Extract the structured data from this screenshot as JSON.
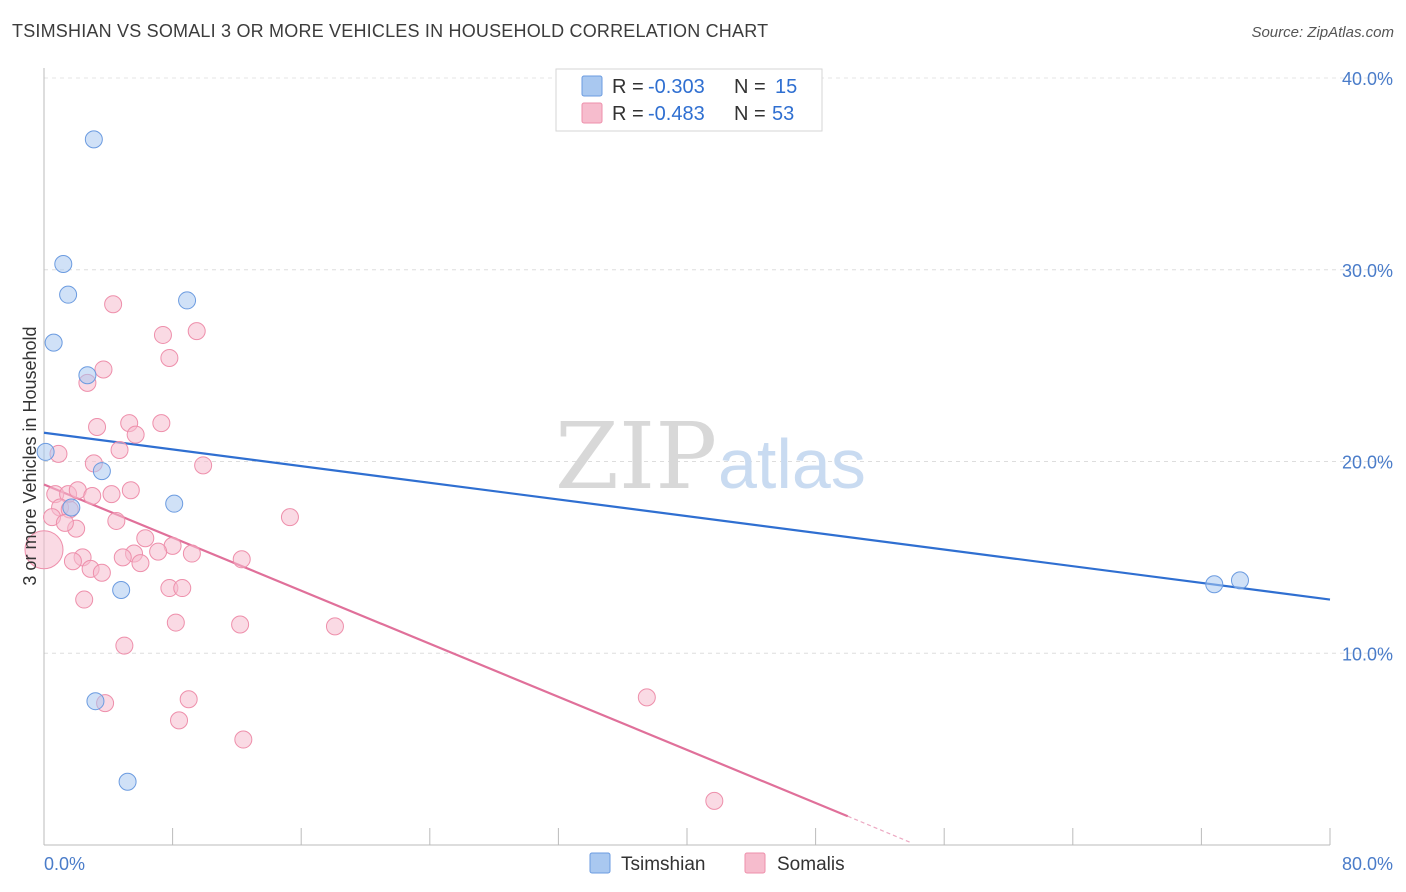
{
  "header": {
    "title": "TSIMSHIAN VS SOMALI 3 OR MORE VEHICLES IN HOUSEHOLD CORRELATION CHART",
    "source": "Source: ZipAtlas.com"
  },
  "watermark": {
    "zip": "ZIP",
    "atlas": "atlas"
  },
  "legend": {
    "rows": [
      {
        "r_label": "R =",
        "r_value": "-0.303",
        "n_label": "N =",
        "n_value": "15",
        "color": "#a9c8f0"
      },
      {
        "r_label": "R =",
        "r_value": "-0.483",
        "n_label": "N =",
        "n_value": "53",
        "color": "#f6bccd"
      }
    ]
  },
  "bottom_legend": {
    "tsimshian": "Tsimshian",
    "somalis": "Somalis"
  },
  "chart_data": {
    "type": "scatter",
    "ylabel": "3 or more Vehicles in Household",
    "xlim": [
      0,
      80
    ],
    "ylim": [
      0,
      40
    ],
    "x_tick_labels": {
      "min": "0.0%",
      "max": "80.0%"
    },
    "y_ticks": [
      10,
      20,
      30,
      40
    ],
    "y_tick_labels": [
      "10.0%",
      "20.0%",
      "30.0%",
      "40.0%"
    ],
    "grid": true,
    "series": [
      {
        "name": "Tsimshian",
        "color": "#a9c8f0",
        "stroke": "#6b9be0",
        "line_color": "#2f6fd1",
        "trend": {
          "x0": 0,
          "y0": 21.5,
          "x1": 80,
          "y1": 12.8
        },
        "points": [
          [
            3.1,
            36.8
          ],
          [
            1.2,
            30.3
          ],
          [
            1.5,
            28.7
          ],
          [
            8.9,
            28.4
          ],
          [
            0.6,
            26.2
          ],
          [
            2.7,
            24.5
          ],
          [
            0.1,
            20.5
          ],
          [
            3.6,
            19.5
          ],
          [
            8.1,
            17.8
          ],
          [
            1.7,
            17.6
          ],
          [
            4.8,
            13.3
          ],
          [
            3.2,
            7.5
          ],
          [
            5.2,
            3.3
          ],
          [
            72.8,
            13.6
          ],
          [
            74.4,
            13.8
          ]
        ]
      },
      {
        "name": "Somalis",
        "color": "#f6bccd",
        "stroke": "#ee8fab",
        "line_color": "#e0709a",
        "trend": {
          "x0": 0,
          "y0": 18.8,
          "x1": 50,
          "y1": 1.5,
          "dash_to_x": 54,
          "dash_to_y": 0.1
        },
        "points": [
          [
            4.3,
            28.2
          ],
          [
            7.4,
            26.6
          ],
          [
            9.5,
            26.8
          ],
          [
            7.8,
            25.4
          ],
          [
            3.7,
            24.8
          ],
          [
            2.7,
            24.1
          ],
          [
            5.3,
            22.0
          ],
          [
            7.3,
            22.0
          ],
          [
            3.3,
            21.8
          ],
          [
            5.7,
            21.4
          ],
          [
            4.7,
            20.6
          ],
          [
            0.9,
            20.4
          ],
          [
            3.1,
            19.9
          ],
          [
            9.9,
            19.8
          ],
          [
            0.7,
            18.3
          ],
          [
            1.5,
            18.3
          ],
          [
            2.1,
            18.5
          ],
          [
            4.2,
            18.3
          ],
          [
            5.4,
            18.5
          ],
          [
            1.0,
            17.6
          ],
          [
            1.6,
            17.5
          ],
          [
            0.5,
            17.1
          ],
          [
            15.3,
            17.1
          ],
          [
            4.5,
            16.9
          ],
          [
            2.0,
            16.5
          ],
          [
            6.3,
            16.0
          ],
          [
            8.0,
            15.6
          ],
          [
            7.1,
            15.3
          ],
          [
            5.6,
            15.2
          ],
          [
            9.2,
            15.2
          ],
          [
            2.4,
            15.0
          ],
          [
            4.9,
            15.0
          ],
          [
            12.3,
            14.9
          ],
          [
            1.8,
            14.8
          ],
          [
            6.0,
            14.7
          ],
          [
            2.9,
            14.4
          ],
          [
            3.6,
            14.2
          ],
          [
            0.0,
            15.4
          ],
          [
            7.8,
            13.4
          ],
          [
            8.6,
            13.4
          ],
          [
            2.5,
            12.8
          ],
          [
            8.2,
            11.6
          ],
          [
            12.2,
            11.5
          ],
          [
            18.1,
            11.4
          ],
          [
            5.0,
            10.4
          ],
          [
            3.8,
            7.4
          ],
          [
            9.0,
            7.6
          ],
          [
            37.5,
            7.7
          ],
          [
            8.4,
            6.5
          ],
          [
            12.4,
            5.5
          ],
          [
            41.7,
            2.3
          ],
          [
            1.3,
            16.8
          ],
          [
            3.0,
            18.2
          ]
        ]
      }
    ]
  }
}
